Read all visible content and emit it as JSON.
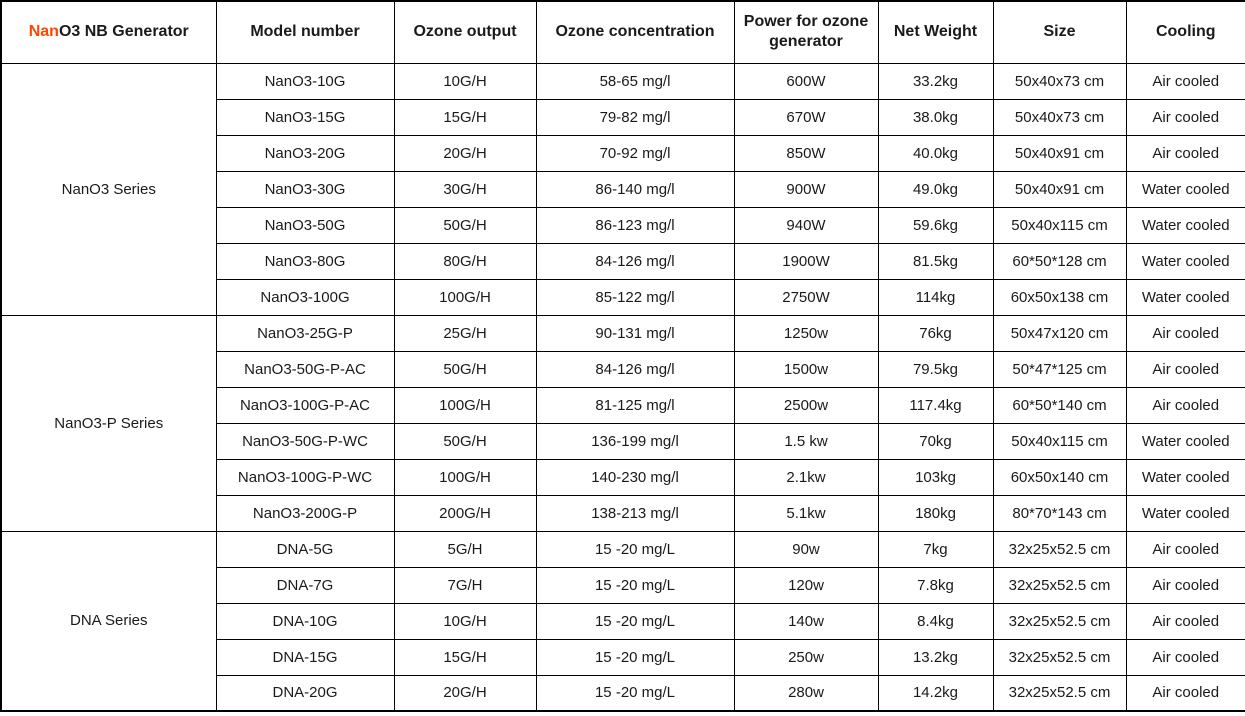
{
  "accent_color": "#FF4500",
  "text_color": "#1a1a1a",
  "table": {
    "header": {
      "generator_prefix": "Nan",
      "generator_suffix": "O3 NB Generator",
      "columns": [
        "Model number",
        "Ozone output",
        "Ozone concentration",
        "Power for ozone generator",
        "Net Weight",
        "Size",
        "Cooling"
      ]
    },
    "groups": [
      {
        "series": "NanO3 Series",
        "rows": [
          {
            "model": "NanO3-10G",
            "output": "10G/H",
            "concentration": "58-65 mg/l",
            "power": "600W",
            "weight": "33.2kg",
            "size": "50x40x73 cm",
            "cooling": "Air cooled"
          },
          {
            "model": "NanO3-15G",
            "output": "15G/H",
            "concentration": "79-82 mg/l",
            "power": "670W",
            "weight": "38.0kg",
            "size": "50x40x73 cm",
            "cooling": "Air cooled"
          },
          {
            "model": "NanO3-20G",
            "output": "20G/H",
            "concentration": "70-92 mg/l",
            "power": "850W",
            "weight": "40.0kg",
            "size": "50x40x91 cm",
            "cooling": "Air cooled"
          },
          {
            "model": "NanO3-30G",
            "output": "30G/H",
            "concentration": "86-140 mg/l",
            "power": "900W",
            "weight": "49.0kg",
            "size": "50x40x91 cm",
            "cooling": "Water cooled"
          },
          {
            "model": "NanO3-50G",
            "output": "50G/H",
            "concentration": "86-123 mg/l",
            "power": "940W",
            "weight": "59.6kg",
            "size": "50x40x115 cm",
            "cooling": "Water cooled"
          },
          {
            "model": "NanO3-80G",
            "output": "80G/H",
            "concentration": "84-126 mg/l",
            "power": "1900W",
            "weight": "81.5kg",
            "size": "60*50*128 cm",
            "cooling": "Water cooled"
          },
          {
            "model": "NanO3-100G",
            "output": "100G/H",
            "concentration": "85-122 mg/l",
            "power": "2750W",
            "weight": "114kg",
            "size": "60x50x138 cm",
            "cooling": "Water cooled"
          }
        ]
      },
      {
        "series": "NanO3-P Series",
        "rows": [
          {
            "model": "NanO3-25G-P",
            "output": "25G/H",
            "concentration": "90-131 mg/l",
            "power": "1250w",
            "weight": "76kg",
            "size": "50x47x120 cm",
            "cooling": "Air cooled"
          },
          {
            "model": "NanO3-50G-P-AC",
            "output": "50G/H",
            "concentration": "84-126 mg/l",
            "power": "1500w",
            "weight": "79.5kg",
            "size": "50*47*125 cm",
            "cooling": "Air cooled"
          },
          {
            "model": "NanO3-100G-P-AC",
            "output": "100G/H",
            "concentration": "81-125 mg/l",
            "power": "2500w",
            "weight": "117.4kg",
            "size": "60*50*140 cm",
            "cooling": "Air cooled"
          },
          {
            "model": "NanO3-50G-P-WC",
            "output": "50G/H",
            "concentration": "136-199 mg/l",
            "power": "1.5 kw",
            "weight": "70kg",
            "size": "50x40x115 cm",
            "cooling": "Water cooled"
          },
          {
            "model": "NanO3-100G-P-WC",
            "output": "100G/H",
            "concentration": "140-230 mg/l",
            "power": "2.1kw",
            "weight": "103kg",
            "size": "60x50x140 cm",
            "cooling": "Water cooled"
          },
          {
            "model": "NanO3-200G-P",
            "output": "200G/H",
            "concentration": "138-213 mg/l",
            "power": "5.1kw",
            "weight": "180kg",
            "size": "80*70*143 cm",
            "cooling": "Water cooled"
          }
        ]
      },
      {
        "series": "DNA Series",
        "rows": [
          {
            "model": "DNA-5G",
            "output": "5G/H",
            "concentration": "15 -20 mg/L",
            "power": "90w",
            "weight": "7kg",
            "size": "32x25x52.5 cm",
            "cooling": "Air cooled"
          },
          {
            "model": "DNA-7G",
            "output": "7G/H",
            "concentration": "15 -20 mg/L",
            "power": "120w",
            "weight": "7.8kg",
            "size": "32x25x52.5 cm",
            "cooling": "Air cooled"
          },
          {
            "model": "DNA-10G",
            "output": "10G/H",
            "concentration": "15 -20 mg/L",
            "power": "140w",
            "weight": "8.4kg",
            "size": "32x25x52.5 cm",
            "cooling": "Air cooled"
          },
          {
            "model": "DNA-15G",
            "output": "15G/H",
            "concentration": "15 -20 mg/L",
            "power": "250w",
            "weight": "13.2kg",
            "size": "32x25x52.5 cm",
            "cooling": "Air cooled"
          },
          {
            "model": "DNA-20G",
            "output": "20G/H",
            "concentration": "15 -20 mg/L",
            "power": "280w",
            "weight": "14.2kg",
            "size": "32x25x52.5 cm",
            "cooling": "Air cooled"
          }
        ]
      }
    ]
  }
}
